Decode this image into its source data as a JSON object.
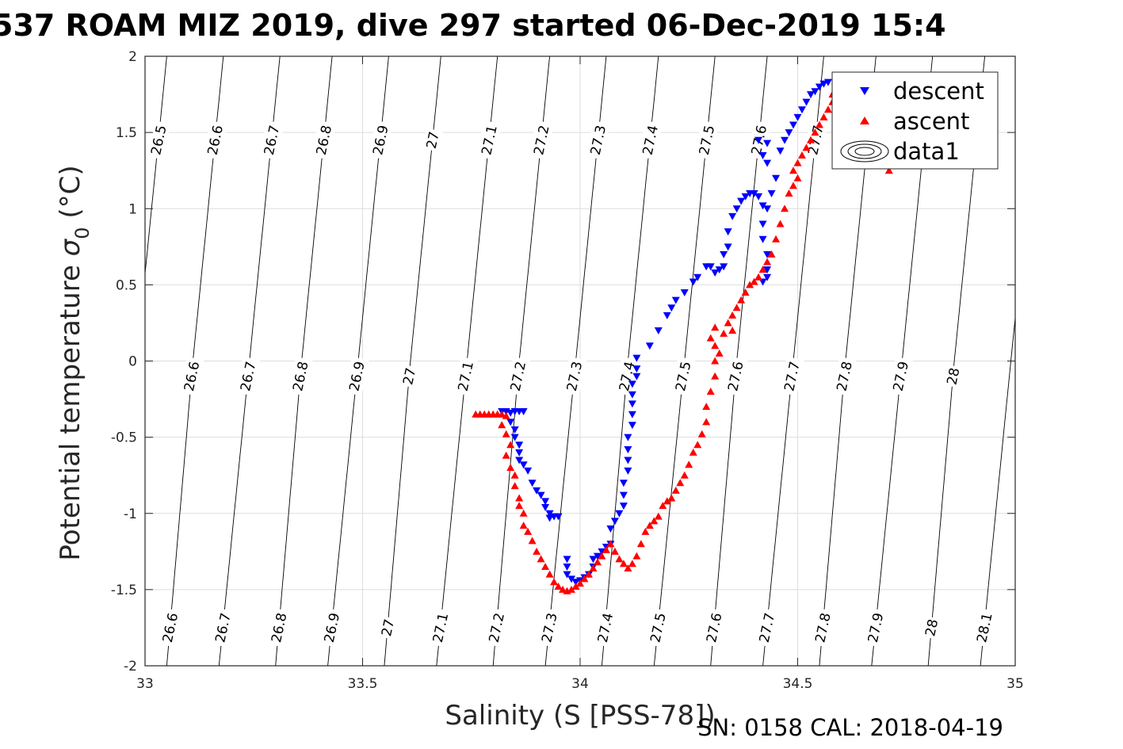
{
  "figure": {
    "title": "537 ROAM MIZ 2019, dive 297 started 06-Dec-2019 15:4",
    "footer": "SN: 0158  CAL: 2018-04-19"
  },
  "chart_data": {
    "type": "scatter",
    "title": "537 ROAM MIZ 2019, dive 297 started 06-Dec-2019 15:4",
    "xlabel": "Salinity (S [PSS-78])",
    "ylabel_main": "Potential temperature ",
    "ylabel_symbol": "σ",
    "ylabel_sub": "0",
    "ylabel_unit": " (°C)",
    "xlim": [
      33,
      35
    ],
    "ylim": [
      -2,
      2
    ],
    "xticks": [
      33,
      33.5,
      34,
      34.5,
      35
    ],
    "xtick_labels": [
      "33",
      "33.5",
      "34",
      "34.5",
      "35"
    ],
    "yticks": [
      2,
      1.5,
      1,
      0.5,
      0,
      -0.5,
      -1,
      -1.5,
      -2
    ],
    "ytick_labels": [
      "2",
      "1.5",
      "1",
      "0.5",
      "0",
      "-0.5",
      "-1",
      "-1.5",
      "-2"
    ],
    "grid": true,
    "legend_position": "top-right",
    "colors": {
      "descent": "#0000ff",
      "ascent": "#ff0000",
      "contour": "#000000",
      "grid": "#dedede",
      "axis": "#262626"
    },
    "series": [
      {
        "name": "descent",
        "marker": "triangle-down",
        "color": "#0000ff",
        "points": [
          [
            33.82,
            -0.33
          ],
          [
            33.83,
            -0.33
          ],
          [
            33.84,
            -0.34
          ],
          [
            33.85,
            -0.33
          ],
          [
            33.86,
            -0.33
          ],
          [
            33.87,
            -0.33
          ],
          [
            33.84,
            -0.4
          ],
          [
            33.85,
            -0.45
          ],
          [
            33.85,
            -0.5
          ],
          [
            33.86,
            -0.55
          ],
          [
            33.86,
            -0.6
          ],
          [
            33.86,
            -0.65
          ],
          [
            33.87,
            -0.68
          ],
          [
            33.88,
            -0.72
          ],
          [
            33.89,
            -0.8
          ],
          [
            33.9,
            -0.85
          ],
          [
            33.91,
            -0.88
          ],
          [
            33.92,
            -0.92
          ],
          [
            33.92,
            -0.96
          ],
          [
            33.93,
            -1.0
          ],
          [
            33.93,
            -1.03
          ],
          [
            33.94,
            -1.02
          ],
          [
            33.95,
            -1.02
          ],
          [
            33.97,
            -1.3
          ],
          [
            33.97,
            -1.35
          ],
          [
            33.97,
            -1.4
          ],
          [
            33.98,
            -1.43
          ],
          [
            33.99,
            -1.45
          ],
          [
            34.0,
            -1.44
          ],
          [
            34.01,
            -1.42
          ],
          [
            34.02,
            -1.4
          ],
          [
            34.03,
            -1.35
          ],
          [
            34.03,
            -1.3
          ],
          [
            34.04,
            -1.28
          ],
          [
            34.05,
            -1.25
          ],
          [
            34.06,
            -1.22
          ],
          [
            34.07,
            -1.2
          ],
          [
            34.07,
            -1.1
          ],
          [
            34.08,
            -1.05
          ],
          [
            34.09,
            -1.0
          ],
          [
            34.1,
            -0.95
          ],
          [
            34.1,
            -0.88
          ],
          [
            34.1,
            -0.8
          ],
          [
            34.11,
            -0.72
          ],
          [
            34.11,
            -0.65
          ],
          [
            34.11,
            -0.58
          ],
          [
            34.11,
            -0.5
          ],
          [
            34.12,
            -0.42
          ],
          [
            34.12,
            -0.35
          ],
          [
            34.12,
            -0.28
          ],
          [
            34.12,
            -0.22
          ],
          [
            34.12,
            -0.15
          ],
          [
            34.13,
            -0.1
          ],
          [
            34.13,
            -0.05
          ],
          [
            34.13,
            0.02
          ],
          [
            34.16,
            0.1
          ],
          [
            34.18,
            0.2
          ],
          [
            34.2,
            0.3
          ],
          [
            34.21,
            0.35
          ],
          [
            34.22,
            0.4
          ],
          [
            34.24,
            0.45
          ],
          [
            34.26,
            0.52
          ],
          [
            34.27,
            0.55
          ],
          [
            34.29,
            0.62
          ],
          [
            34.3,
            0.62
          ],
          [
            34.31,
            0.58
          ],
          [
            34.32,
            0.6
          ],
          [
            34.33,
            0.62
          ],
          [
            34.33,
            0.7
          ],
          [
            34.34,
            0.75
          ],
          [
            34.34,
            0.85
          ],
          [
            34.35,
            0.95
          ],
          [
            34.36,
            1.0
          ],
          [
            34.37,
            1.05
          ],
          [
            34.38,
            1.08
          ],
          [
            34.39,
            1.1
          ],
          [
            34.4,
            1.1
          ],
          [
            34.41,
            1.08
          ],
          [
            34.42,
            1.02
          ],
          [
            34.43,
            1.0
          ],
          [
            34.42,
            0.9
          ],
          [
            34.42,
            0.8
          ],
          [
            34.43,
            0.7
          ],
          [
            34.43,
            0.6
          ],
          [
            34.42,
            0.52
          ],
          [
            34.43,
            0.55
          ],
          [
            34.44,
            1.1
          ],
          [
            34.45,
            1.2
          ],
          [
            34.43,
            1.3
          ],
          [
            34.42,
            1.35
          ],
          [
            34.41,
            1.45
          ],
          [
            34.43,
            1.43
          ],
          [
            34.46,
            1.38
          ],
          [
            34.47,
            1.45
          ],
          [
            34.48,
            1.5
          ],
          [
            34.49,
            1.55
          ],
          [
            34.5,
            1.6
          ],
          [
            34.51,
            1.65
          ],
          [
            34.52,
            1.7
          ],
          [
            34.53,
            1.75
          ],
          [
            34.54,
            1.77
          ],
          [
            34.55,
            1.8
          ],
          [
            34.56,
            1.82
          ],
          [
            34.57,
            1.83
          ]
        ]
      },
      {
        "name": "ascent",
        "marker": "triangle-up",
        "color": "#ff0000",
        "points": [
          [
            33.76,
            -0.35
          ],
          [
            33.77,
            -0.35
          ],
          [
            33.78,
            -0.35
          ],
          [
            33.79,
            -0.35
          ],
          [
            33.8,
            -0.35
          ],
          [
            33.81,
            -0.35
          ],
          [
            33.82,
            -0.35
          ],
          [
            33.83,
            -0.36
          ],
          [
            33.82,
            -0.42
          ],
          [
            33.83,
            -0.48
          ],
          [
            33.84,
            -0.55
          ],
          [
            33.83,
            -0.62
          ],
          [
            33.84,
            -0.7
          ],
          [
            33.85,
            -0.75
          ],
          [
            33.85,
            -0.82
          ],
          [
            33.86,
            -0.9
          ],
          [
            33.86,
            -0.95
          ],
          [
            33.87,
            -1.0
          ],
          [
            33.87,
            -1.08
          ],
          [
            33.88,
            -1.12
          ],
          [
            33.89,
            -1.18
          ],
          [
            33.9,
            -1.25
          ],
          [
            33.91,
            -1.3
          ],
          [
            33.92,
            -1.35
          ],
          [
            33.93,
            -1.4
          ],
          [
            33.94,
            -1.45
          ],
          [
            33.95,
            -1.48
          ],
          [
            33.96,
            -1.5
          ],
          [
            33.97,
            -1.51
          ],
          [
            33.98,
            -1.5
          ],
          [
            33.99,
            -1.48
          ],
          [
            34.0,
            -1.46
          ],
          [
            34.01,
            -1.43
          ],
          [
            34.02,
            -1.4
          ],
          [
            34.03,
            -1.36
          ],
          [
            34.04,
            -1.32
          ],
          [
            34.05,
            -1.28
          ],
          [
            34.06,
            -1.24
          ],
          [
            34.07,
            -1.2
          ],
          [
            34.08,
            -1.25
          ],
          [
            34.09,
            -1.3
          ],
          [
            34.1,
            -1.33
          ],
          [
            34.11,
            -1.36
          ],
          [
            34.12,
            -1.33
          ],
          [
            34.13,
            -1.28
          ],
          [
            34.14,
            -1.2
          ],
          [
            34.15,
            -1.12
          ],
          [
            34.16,
            -1.08
          ],
          [
            34.17,
            -1.05
          ],
          [
            34.18,
            -1.02
          ],
          [
            34.19,
            -0.95
          ],
          [
            34.2,
            -0.92
          ],
          [
            34.21,
            -0.9
          ],
          [
            34.22,
            -0.85
          ],
          [
            34.23,
            -0.8
          ],
          [
            34.24,
            -0.75
          ],
          [
            34.25,
            -0.68
          ],
          [
            34.26,
            -0.6
          ],
          [
            34.27,
            -0.55
          ],
          [
            34.28,
            -0.48
          ],
          [
            34.29,
            -0.4
          ],
          [
            34.29,
            -0.3
          ],
          [
            34.3,
            -0.2
          ],
          [
            34.31,
            -0.1
          ],
          [
            34.31,
            0.0
          ],
          [
            34.32,
            0.05
          ],
          [
            34.31,
            0.1
          ],
          [
            34.3,
            0.15
          ],
          [
            34.31,
            0.22
          ],
          [
            34.33,
            0.18
          ],
          [
            34.35,
            0.2
          ],
          [
            34.34,
            0.25
          ],
          [
            34.35,
            0.3
          ],
          [
            34.36,
            0.35
          ],
          [
            34.37,
            0.4
          ],
          [
            34.38,
            0.45
          ],
          [
            34.39,
            0.5
          ],
          [
            34.4,
            0.52
          ],
          [
            34.41,
            0.55
          ],
          [
            34.42,
            0.6
          ],
          [
            34.43,
            0.65
          ],
          [
            34.44,
            0.7
          ],
          [
            34.45,
            0.8
          ],
          [
            34.46,
            0.9
          ],
          [
            34.47,
            1.0
          ],
          [
            34.48,
            1.1
          ],
          [
            34.49,
            1.15
          ],
          [
            34.5,
            1.2
          ],
          [
            34.49,
            1.25
          ],
          [
            34.5,
            1.3
          ],
          [
            34.51,
            1.35
          ],
          [
            34.52,
            1.4
          ],
          [
            34.53,
            1.45
          ],
          [
            34.54,
            1.5
          ],
          [
            34.55,
            1.55
          ],
          [
            34.56,
            1.6
          ],
          [
            34.57,
            1.65
          ],
          [
            34.58,
            1.7
          ],
          [
            34.58,
            1.75
          ],
          [
            34.59,
            1.8
          ],
          [
            34.6,
            1.82
          ],
          [
            34.7,
            1.3
          ],
          [
            34.71,
            1.25
          ]
        ]
      }
    ],
    "isopycnals": {
      "levels": [
        26.5,
        26.6,
        26.7,
        26.8,
        26.9,
        27,
        27.1,
        27.2,
        27.3,
        27.4,
        27.5,
        27.6,
        27.7,
        27.8,
        27.9,
        28,
        28.1
      ],
      "labels": [
        "26.5",
        "26.6",
        "26.7",
        "26.8",
        "26.9",
        "27",
        "27.1",
        "27.2",
        "27.3",
        "27.4",
        "27.5",
        "27.6",
        "27.7",
        "27.8",
        "27.9",
        "28",
        "28.1"
      ],
      "lines": [
        {
          "label": "26.5",
          "s_at_t_min": 32.67,
          "s_at_t0": 32.98,
          "s_at_t_max": 33.05
        },
        {
          "label": "26.6",
          "s_at_t_min": 33.05,
          "s_at_t0": 33.11,
          "s_at_t_max": 33.18
        },
        {
          "label": "26.7",
          "s_at_t_min": 33.17,
          "s_at_t0": 33.24,
          "s_at_t_max": 33.31
        },
        {
          "label": "26.8",
          "s_at_t_min": 33.3,
          "s_at_t0": 33.36,
          "s_at_t_max": 33.43
        },
        {
          "label": "26.9",
          "s_at_t_min": 33.42,
          "s_at_t0": 33.49,
          "s_at_t_max": 33.56
        },
        {
          "label": "27",
          "s_at_t_min": 33.55,
          "s_at_t0": 33.61,
          "s_at_t_max": 33.68
        },
        {
          "label": "27.1",
          "s_at_t_min": 33.67,
          "s_at_t0": 33.74,
          "s_at_t_max": 33.81
        },
        {
          "label": "27.2",
          "s_at_t_min": 33.8,
          "s_at_t0": 33.86,
          "s_at_t_max": 33.93
        },
        {
          "label": "27.3",
          "s_at_t_min": 33.92,
          "s_at_t0": 33.99,
          "s_at_t_max": 34.06
        },
        {
          "label": "27.4",
          "s_at_t_min": 34.05,
          "s_at_t0": 34.11,
          "s_at_t_max": 34.18
        },
        {
          "label": "27.5",
          "s_at_t_min": 34.17,
          "s_at_t0": 34.24,
          "s_at_t_max": 34.31
        },
        {
          "label": "27.6",
          "s_at_t_min": 34.3,
          "s_at_t0": 34.36,
          "s_at_t_max": 34.43
        },
        {
          "label": "27.7",
          "s_at_t_min": 34.42,
          "s_at_t0": 34.49,
          "s_at_t_max": 34.56
        },
        {
          "label": "27.8",
          "s_at_t_min": 34.55,
          "s_at_t0": 34.61,
          "s_at_t_max": 34.68
        },
        {
          "label": "27.9",
          "s_at_t_min": 34.67,
          "s_at_t0": 34.74,
          "s_at_t_max": 34.81
        },
        {
          "label": "28",
          "s_at_t_min": 34.8,
          "s_at_t0": 34.86,
          "s_at_t_max": 34.93
        },
        {
          "label": "28.1",
          "s_at_t_min": 34.92,
          "s_at_t0": 34.99,
          "s_at_t_max": 35.06
        }
      ]
    },
    "legend": [
      {
        "label": "descent",
        "marker": "triangle-down",
        "color": "#0000ff"
      },
      {
        "label": "ascent",
        "marker": "triangle-up",
        "color": "#ff0000"
      },
      {
        "label": "data1",
        "marker": "contour",
        "color": "#000000"
      }
    ]
  }
}
